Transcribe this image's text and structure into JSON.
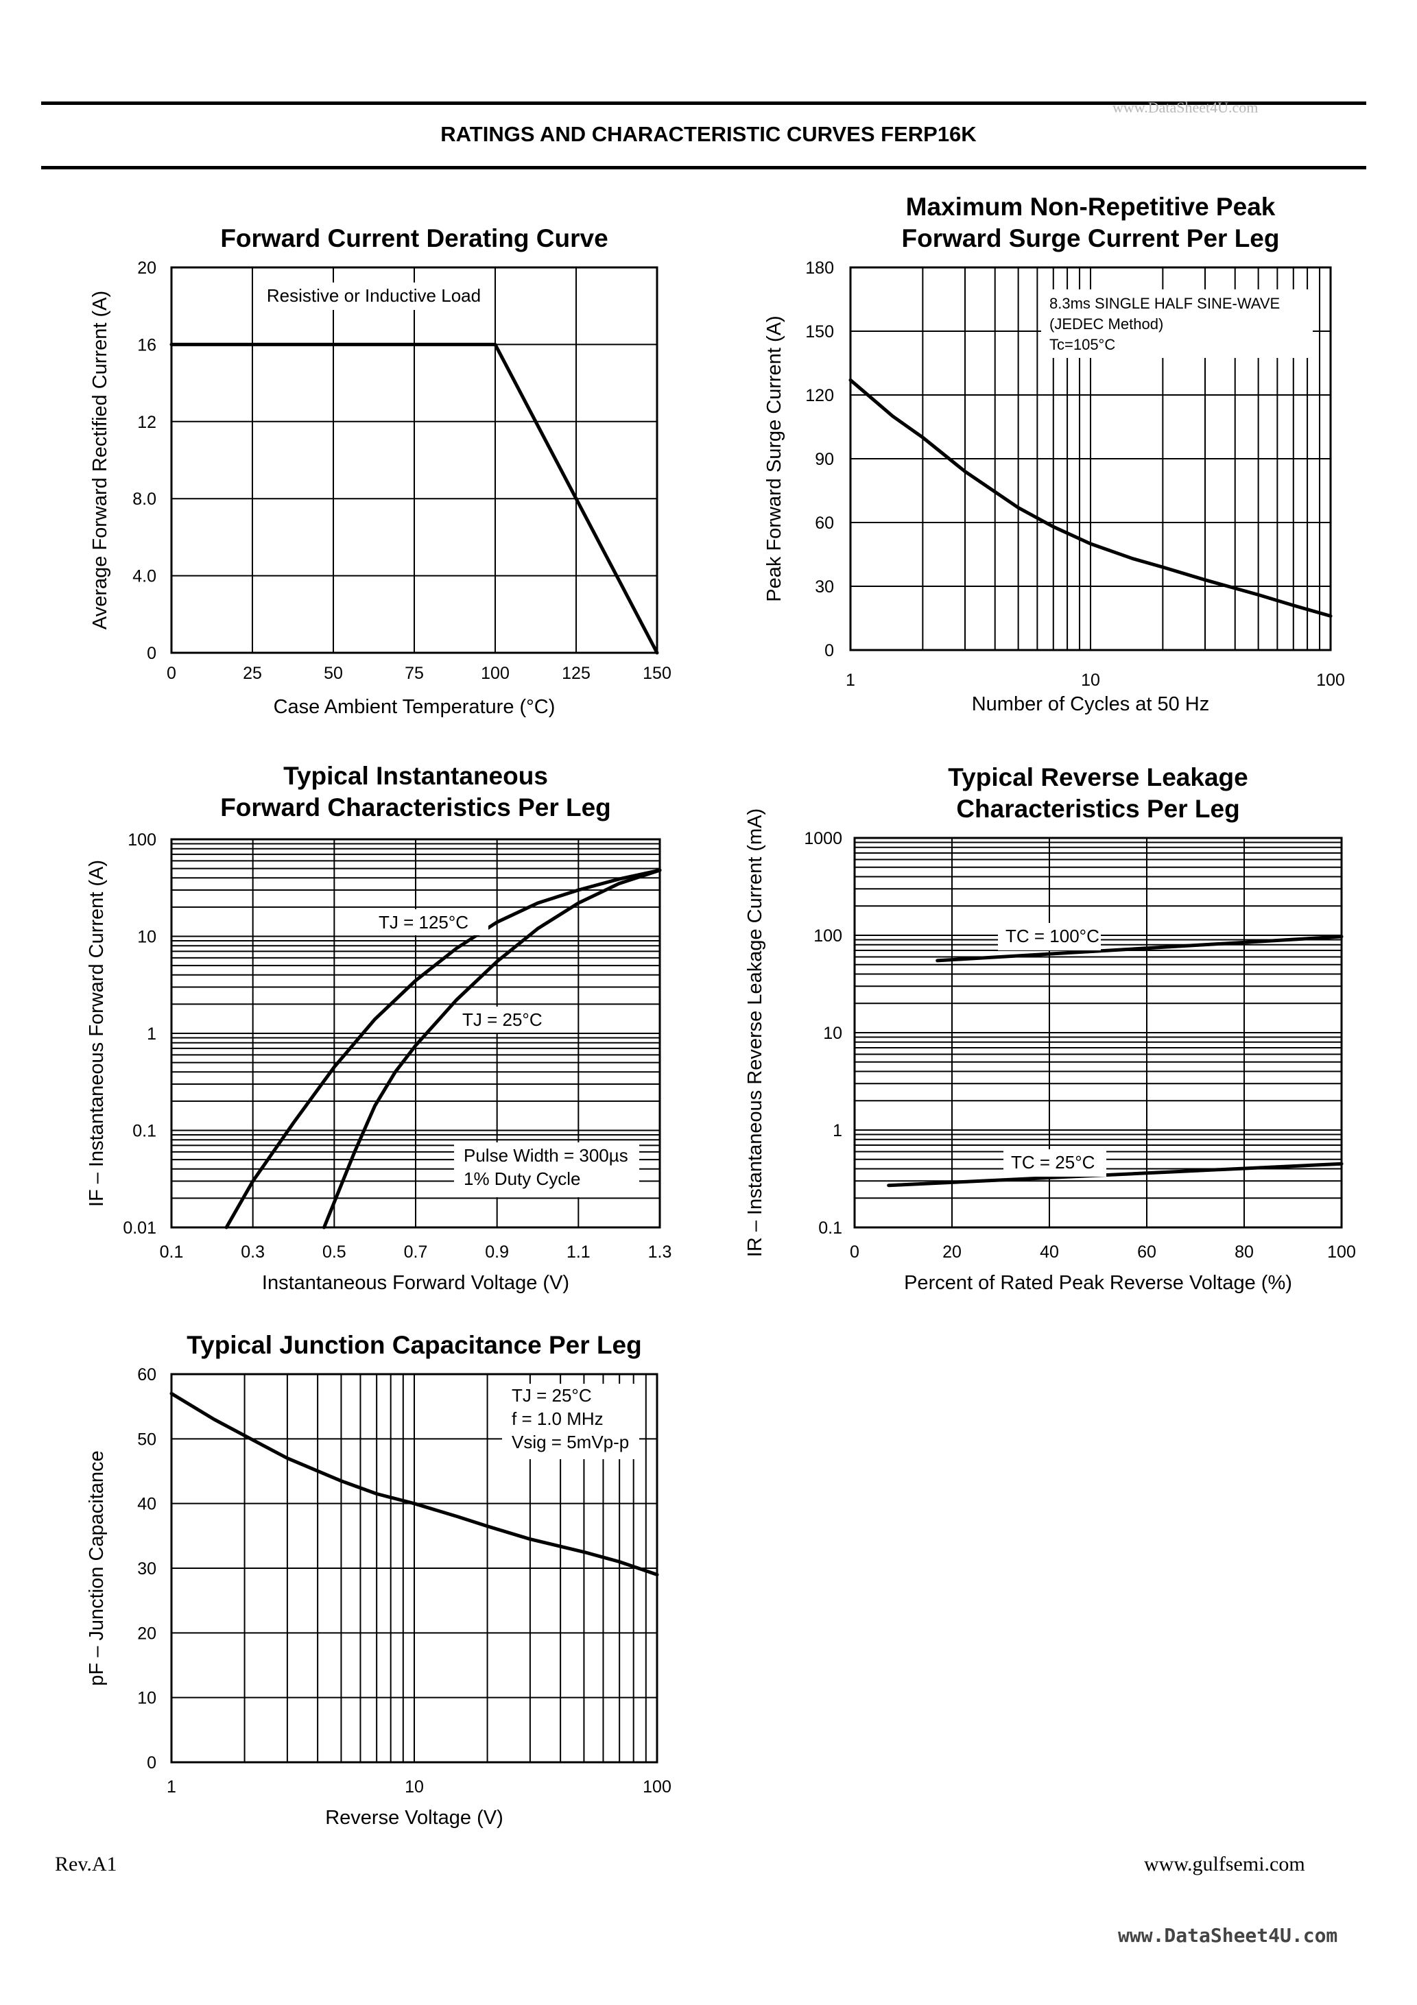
{
  "header": {
    "title": "RATINGS AND CHARACTERISTIC CURVES FERP16K",
    "watermark": "www.DataSheet4U.com"
  },
  "footer": {
    "rev": "Rev.A1",
    "site": "www.gulfsemi.com",
    "watermark": "www.DataSheet4U.com"
  },
  "chart_data": [
    {
      "id": "c1",
      "type": "line",
      "title": [
        "Forward Current Derating Curve"
      ],
      "xlabel": "Case Ambient Temperature (°C)",
      "ylabel": "Average Forward Rectified Current (A)",
      "xscale": "linear",
      "yscale": "linear",
      "xlim": [
        0,
        150
      ],
      "ylim": [
        0,
        20
      ],
      "xticks": [
        0,
        25,
        50,
        75,
        100,
        125,
        150
      ],
      "xticklabels": [
        "0",
        "25",
        "50",
        "75",
        "100",
        "125",
        "150"
      ],
      "yticks": [
        0,
        4,
        8,
        12,
        16,
        20
      ],
      "yticklabels": [
        "0",
        "4.0",
        "8.0",
        "12",
        "16",
        "20"
      ],
      "grid": true,
      "annotations": [
        "Resistive or Inductive Load"
      ],
      "series": [
        {
          "x": [
            0,
            100,
            150
          ],
          "y": [
            16,
            16,
            0
          ]
        }
      ]
    },
    {
      "id": "c2",
      "type": "line",
      "title": [
        "Maximum Non-Repetitive Peak",
        "Forward Surge Current Per Leg"
      ],
      "xlabel": "Number of Cycles at 50 Hz",
      "ylabel": "Peak Forward Surge Current (A)",
      "xscale": "log",
      "yscale": "linear",
      "xlim": [
        1,
        100
      ],
      "ylim": [
        0,
        180
      ],
      "xticks": [
        1,
        10,
        100
      ],
      "xticklabels": [
        "1",
        "10",
        "100"
      ],
      "yticks": [
        0,
        30,
        60,
        90,
        120,
        150,
        180
      ],
      "yticklabels": [
        "0",
        "30",
        "60",
        "90",
        "120",
        "150",
        "180"
      ],
      "grid": true,
      "annotations": [
        "8.3ms SINGLE HALF SINE-WAVE",
        "(JEDEC Method)",
        "Tc=105°C"
      ],
      "series": [
        {
          "x": [
            1,
            1.5,
            2,
            3,
            5,
            7,
            10,
            15,
            20,
            30,
            50,
            70,
            100
          ],
          "y": [
            127,
            110,
            100,
            84,
            67,
            58,
            50,
            43,
            39,
            33,
            26,
            21,
            16
          ]
        }
      ]
    },
    {
      "id": "c3",
      "type": "line",
      "title": [
        "Typical Instantaneous",
        "Forward Characteristics Per Leg"
      ],
      "xlabel": "Instantaneous Forward Voltage (V)",
      "ylabel": "IF – Instantaneous Forward Current (A)",
      "xscale": "linear",
      "yscale": "log",
      "xlim": [
        0.1,
        1.3
      ],
      "ylim": [
        0.01,
        100
      ],
      "xticks": [
        0.1,
        0.3,
        0.5,
        0.7,
        0.9,
        1.1,
        1.3
      ],
      "xticklabels": [
        "0.1",
        "0.3",
        "0.5",
        "0.7",
        "0.9",
        "1.1",
        "1.3"
      ],
      "yticks": [
        0.01,
        0.1,
        1,
        10,
        100
      ],
      "yticklabels": [
        "0.01",
        "0.1",
        "1",
        "10",
        "100"
      ],
      "grid": true,
      "annotations": [
        "Pulse Width = 300µs",
        "1% Duty Cycle"
      ],
      "series": [
        {
          "name": "TJ = 125°C",
          "x": [
            0.235,
            0.3,
            0.4,
            0.5,
            0.6,
            0.7,
            0.8,
            0.9,
            1.0,
            1.1,
            1.2,
            1.3
          ],
          "y": [
            0.01,
            0.03,
            0.12,
            0.45,
            1.4,
            3.5,
            7.5,
            14,
            22,
            30,
            39,
            48
          ]
        },
        {
          "name": "TJ = 25°C",
          "x": [
            0.475,
            0.55,
            0.6,
            0.65,
            0.7,
            0.8,
            0.9,
            1.0,
            1.1,
            1.2,
            1.3
          ],
          "y": [
            0.01,
            0.06,
            0.18,
            0.4,
            0.75,
            2.2,
            5.5,
            12,
            22,
            35,
            48
          ]
        }
      ]
    },
    {
      "id": "c4",
      "type": "line",
      "title": [
        "Typical Reverse Leakage",
        "Characteristics Per Leg"
      ],
      "xlabel": "Percent of Rated Peak Reverse Voltage (%)",
      "ylabel": "IR – Instantaneous Reverse Leakage Current (mA)",
      "xscale": "linear",
      "yscale": "log",
      "xlim": [
        0,
        100
      ],
      "ylim": [
        0.1,
        1000
      ],
      "xticks": [
        0,
        20,
        40,
        60,
        80,
        100
      ],
      "xticklabels": [
        "0",
        "20",
        "40",
        "60",
        "80",
        "100"
      ],
      "yticks": [
        0.1,
        1,
        10,
        100,
        1000
      ],
      "yticklabels": [
        "0.1",
        "1",
        "10",
        "100",
        "1000"
      ],
      "grid": true,
      "series": [
        {
          "name": "TC = 100°C",
          "x": [
            17,
            100
          ],
          "y": [
            55,
            97
          ]
        },
        {
          "name": "TC = 25°C",
          "x": [
            7,
            100
          ],
          "y": [
            0.27,
            0.45
          ]
        }
      ]
    },
    {
      "id": "c5",
      "type": "line",
      "title": [
        "Typical Junction Capacitance Per Leg"
      ],
      "xlabel": "Reverse Voltage (V)",
      "ylabel": "pF – Junction Capacitance",
      "xscale": "log",
      "yscale": "linear",
      "xlim": [
        1,
        100
      ],
      "ylim": [
        0,
        60
      ],
      "xticks": [
        1,
        10,
        100
      ],
      "xticklabels": [
        "1",
        "10",
        "100"
      ],
      "yticks": [
        0,
        10,
        20,
        30,
        40,
        50,
        60
      ],
      "yticklabels": [
        "0",
        "10",
        "20",
        "30",
        "40",
        "50",
        "60"
      ],
      "grid": true,
      "annotations": [
        "TJ = 25°C",
        "f = 1.0 MHz",
        "Vsig = 5mVp-p"
      ],
      "series": [
        {
          "x": [
            1,
            1.5,
            2,
            3,
            5,
            7,
            10,
            15,
            20,
            30,
            50,
            70,
            100
          ],
          "y": [
            57,
            53,
            50.5,
            47,
            43.5,
            41.5,
            40,
            38,
            36.5,
            34.5,
            32.5,
            31,
            29
          ]
        }
      ]
    }
  ]
}
